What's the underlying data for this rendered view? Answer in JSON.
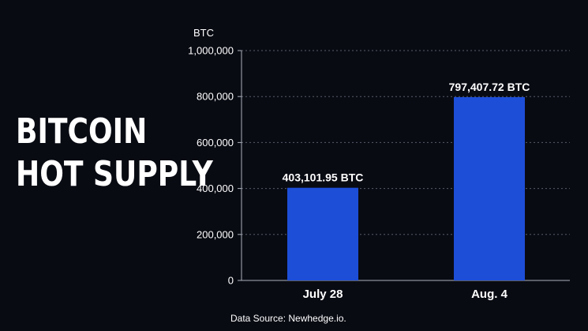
{
  "title_lines": [
    "BITCOIN",
    "HOT SUPPLY"
  ],
  "source": "Data Source: Newhedge.io.",
  "colors": {
    "background": "#090b13",
    "bar": "#1d4ed8",
    "text": "#ffffff",
    "axis": "#aab0bb",
    "grid": "#6b7280"
  },
  "chart_data": {
    "type": "bar",
    "categories": [
      "July 28",
      "Aug. 4"
    ],
    "values": [
      403101.95,
      797407.72
    ],
    "data_labels": [
      "403,101.95 BTC",
      "797,407.72 BTC"
    ],
    "ylabel": "BTC",
    "ylim": [
      0,
      1000000
    ],
    "yticks": [
      0,
      200000,
      400000,
      600000,
      800000,
      1000000
    ],
    "ytick_labels": [
      "0",
      "200,000",
      "400,000",
      "600,000",
      "800,000",
      "1,000,000"
    ],
    "grid": "horizontal-dashed"
  }
}
